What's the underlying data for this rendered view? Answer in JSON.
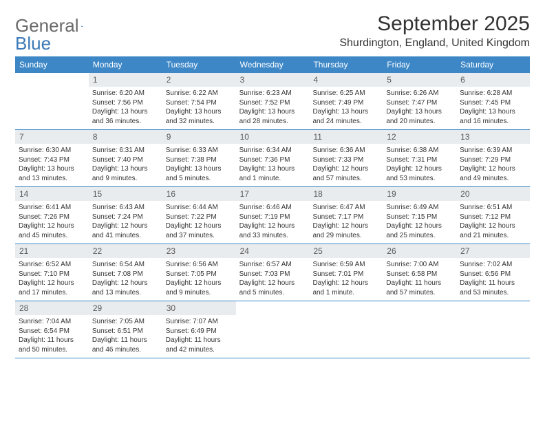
{
  "logo": {
    "general": "General",
    "blue": "Blue"
  },
  "title": "September 2025",
  "location": "Shurdington, England, United Kingdom",
  "colors": {
    "header_bg": "#3d87c7",
    "header_text": "#ffffff",
    "daynum_bg": "#e9ecef",
    "logo_gray": "#6a6a6a",
    "logo_blue": "#3a7ab8"
  },
  "day_labels": [
    "Sunday",
    "Monday",
    "Tuesday",
    "Wednesday",
    "Thursday",
    "Friday",
    "Saturday"
  ],
  "weeks": [
    [
      {
        "n": "",
        "sunrise": "",
        "sunset": "",
        "daylight": ""
      },
      {
        "n": "1",
        "sunrise": "Sunrise: 6:20 AM",
        "sunset": "Sunset: 7:56 PM",
        "daylight": "Daylight: 13 hours and 36 minutes."
      },
      {
        "n": "2",
        "sunrise": "Sunrise: 6:22 AM",
        "sunset": "Sunset: 7:54 PM",
        "daylight": "Daylight: 13 hours and 32 minutes."
      },
      {
        "n": "3",
        "sunrise": "Sunrise: 6:23 AM",
        "sunset": "Sunset: 7:52 PM",
        "daylight": "Daylight: 13 hours and 28 minutes."
      },
      {
        "n": "4",
        "sunrise": "Sunrise: 6:25 AM",
        "sunset": "Sunset: 7:49 PM",
        "daylight": "Daylight: 13 hours and 24 minutes."
      },
      {
        "n": "5",
        "sunrise": "Sunrise: 6:26 AM",
        "sunset": "Sunset: 7:47 PM",
        "daylight": "Daylight: 13 hours and 20 minutes."
      },
      {
        "n": "6",
        "sunrise": "Sunrise: 6:28 AM",
        "sunset": "Sunset: 7:45 PM",
        "daylight": "Daylight: 13 hours and 16 minutes."
      }
    ],
    [
      {
        "n": "7",
        "sunrise": "Sunrise: 6:30 AM",
        "sunset": "Sunset: 7:43 PM",
        "daylight": "Daylight: 13 hours and 13 minutes."
      },
      {
        "n": "8",
        "sunrise": "Sunrise: 6:31 AM",
        "sunset": "Sunset: 7:40 PM",
        "daylight": "Daylight: 13 hours and 9 minutes."
      },
      {
        "n": "9",
        "sunrise": "Sunrise: 6:33 AM",
        "sunset": "Sunset: 7:38 PM",
        "daylight": "Daylight: 13 hours and 5 minutes."
      },
      {
        "n": "10",
        "sunrise": "Sunrise: 6:34 AM",
        "sunset": "Sunset: 7:36 PM",
        "daylight": "Daylight: 13 hours and 1 minute."
      },
      {
        "n": "11",
        "sunrise": "Sunrise: 6:36 AM",
        "sunset": "Sunset: 7:33 PM",
        "daylight": "Daylight: 12 hours and 57 minutes."
      },
      {
        "n": "12",
        "sunrise": "Sunrise: 6:38 AM",
        "sunset": "Sunset: 7:31 PM",
        "daylight": "Daylight: 12 hours and 53 minutes."
      },
      {
        "n": "13",
        "sunrise": "Sunrise: 6:39 AM",
        "sunset": "Sunset: 7:29 PM",
        "daylight": "Daylight: 12 hours and 49 minutes."
      }
    ],
    [
      {
        "n": "14",
        "sunrise": "Sunrise: 6:41 AM",
        "sunset": "Sunset: 7:26 PM",
        "daylight": "Daylight: 12 hours and 45 minutes."
      },
      {
        "n": "15",
        "sunrise": "Sunrise: 6:43 AM",
        "sunset": "Sunset: 7:24 PM",
        "daylight": "Daylight: 12 hours and 41 minutes."
      },
      {
        "n": "16",
        "sunrise": "Sunrise: 6:44 AM",
        "sunset": "Sunset: 7:22 PM",
        "daylight": "Daylight: 12 hours and 37 minutes."
      },
      {
        "n": "17",
        "sunrise": "Sunrise: 6:46 AM",
        "sunset": "Sunset: 7:19 PM",
        "daylight": "Daylight: 12 hours and 33 minutes."
      },
      {
        "n": "18",
        "sunrise": "Sunrise: 6:47 AM",
        "sunset": "Sunset: 7:17 PM",
        "daylight": "Daylight: 12 hours and 29 minutes."
      },
      {
        "n": "19",
        "sunrise": "Sunrise: 6:49 AM",
        "sunset": "Sunset: 7:15 PM",
        "daylight": "Daylight: 12 hours and 25 minutes."
      },
      {
        "n": "20",
        "sunrise": "Sunrise: 6:51 AM",
        "sunset": "Sunset: 7:12 PM",
        "daylight": "Daylight: 12 hours and 21 minutes."
      }
    ],
    [
      {
        "n": "21",
        "sunrise": "Sunrise: 6:52 AM",
        "sunset": "Sunset: 7:10 PM",
        "daylight": "Daylight: 12 hours and 17 minutes."
      },
      {
        "n": "22",
        "sunrise": "Sunrise: 6:54 AM",
        "sunset": "Sunset: 7:08 PM",
        "daylight": "Daylight: 12 hours and 13 minutes."
      },
      {
        "n": "23",
        "sunrise": "Sunrise: 6:56 AM",
        "sunset": "Sunset: 7:05 PM",
        "daylight": "Daylight: 12 hours and 9 minutes."
      },
      {
        "n": "24",
        "sunrise": "Sunrise: 6:57 AM",
        "sunset": "Sunset: 7:03 PM",
        "daylight": "Daylight: 12 hours and 5 minutes."
      },
      {
        "n": "25",
        "sunrise": "Sunrise: 6:59 AM",
        "sunset": "Sunset: 7:01 PM",
        "daylight": "Daylight: 12 hours and 1 minute."
      },
      {
        "n": "26",
        "sunrise": "Sunrise: 7:00 AM",
        "sunset": "Sunset: 6:58 PM",
        "daylight": "Daylight: 11 hours and 57 minutes."
      },
      {
        "n": "27",
        "sunrise": "Sunrise: 7:02 AM",
        "sunset": "Sunset: 6:56 PM",
        "daylight": "Daylight: 11 hours and 53 minutes."
      }
    ],
    [
      {
        "n": "28",
        "sunrise": "Sunrise: 7:04 AM",
        "sunset": "Sunset: 6:54 PM",
        "daylight": "Daylight: 11 hours and 50 minutes."
      },
      {
        "n": "29",
        "sunrise": "Sunrise: 7:05 AM",
        "sunset": "Sunset: 6:51 PM",
        "daylight": "Daylight: 11 hours and 46 minutes."
      },
      {
        "n": "30",
        "sunrise": "Sunrise: 7:07 AM",
        "sunset": "Sunset: 6:49 PM",
        "daylight": "Daylight: 11 hours and 42 minutes."
      },
      {
        "n": "",
        "sunrise": "",
        "sunset": "",
        "daylight": ""
      },
      {
        "n": "",
        "sunrise": "",
        "sunset": "",
        "daylight": ""
      },
      {
        "n": "",
        "sunrise": "",
        "sunset": "",
        "daylight": ""
      },
      {
        "n": "",
        "sunrise": "",
        "sunset": "",
        "daylight": ""
      }
    ]
  ]
}
